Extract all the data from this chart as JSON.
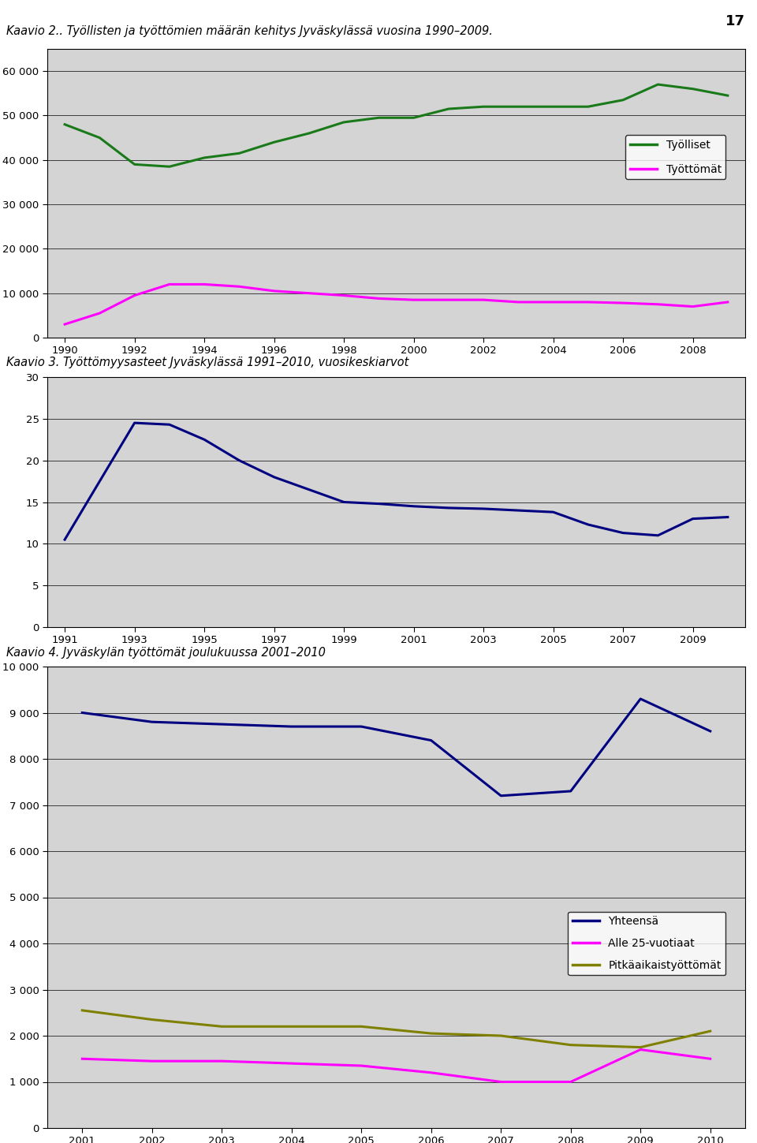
{
  "page_number": "17",
  "chart1": {
    "caption": "Kaavio 2.. Työllisten ja työttömien määrän kehitys Jyväskylässä vuosina 1990–2009.",
    "years": [
      1990,
      1991,
      1992,
      1993,
      1994,
      1995,
      1996,
      1997,
      1998,
      1999,
      2000,
      2001,
      2002,
      2003,
      2004,
      2005,
      2006,
      2007,
      2008,
      2009
    ],
    "tyolliset": [
      48000,
      45000,
      39000,
      38500,
      40500,
      41500,
      44000,
      46000,
      48500,
      49500,
      49500,
      51500,
      52000,
      52000,
      52000,
      52000,
      53500,
      57000,
      56000,
      54500
    ],
    "tyottomat": [
      3000,
      5500,
      9500,
      12000,
      12000,
      11500,
      10500,
      10000,
      9500,
      8800,
      8500,
      8500,
      8500,
      8000,
      8000,
      8000,
      7800,
      7500,
      7000,
      8000
    ],
    "tyolliset_color": "#1a7a1a",
    "tyottomat_color": "#FF00FF",
    "ylim": [
      0,
      65000
    ],
    "yticks": [
      0,
      10000,
      20000,
      30000,
      40000,
      50000,
      60000
    ],
    "ytick_labels": [
      "0",
      "10 000",
      "20 000",
      "30 000",
      "40 000",
      "50 000",
      "60 000"
    ],
    "xticks": [
      1990,
      1992,
      1994,
      1996,
      1998,
      2000,
      2002,
      2004,
      2006,
      2008
    ],
    "legend_labels": [
      "Työlliset",
      "Työttömät"
    ],
    "plot_bg": "#D4D4D4"
  },
  "chart2": {
    "caption": "Kaavio 3. Työttömyysasteet Jyväskylässä 1991–2010, vuosikeskiarvot",
    "years": [
      1991,
      1992,
      1993,
      1994,
      1995,
      1996,
      1997,
      1998,
      1999,
      2000,
      2001,
      2002,
      2003,
      2004,
      2005,
      2006,
      2007,
      2008,
      2009,
      2010
    ],
    "values": [
      10.5,
      17.5,
      24.5,
      24.3,
      22.5,
      20.0,
      18.0,
      16.5,
      15.0,
      14.8,
      14.5,
      14.3,
      14.2,
      14.0,
      13.8,
      12.3,
      11.3,
      11.0,
      13.0,
      13.2
    ],
    "line_color": "#000080",
    "ylim": [
      0,
      30
    ],
    "yticks": [
      0,
      5,
      10,
      15,
      20,
      25,
      30
    ],
    "xticks": [
      1991,
      1993,
      1995,
      1997,
      1999,
      2001,
      2003,
      2005,
      2007,
      2009
    ],
    "plot_bg": "#D4D4D4"
  },
  "chart3": {
    "caption": "Kaavio 4. Jyväskylän työttömät joulukuussa 2001–2010",
    "yhteensa_years": [
      2001,
      2002,
      2003,
      2004,
      2005,
      2006,
      2007,
      2008,
      2009,
      2010
    ],
    "yhteensa_vals": [
      9000,
      8800,
      8750,
      8700,
      8700,
      8400,
      7200,
      7300,
      9300,
      8600
    ],
    "alle25_vals": [
      1500,
      1450,
      1450,
      1400,
      1350,
      1200,
      1000,
      1000,
      1700,
      1500
    ],
    "pitkaaikais_vals": [
      2550,
      2350,
      2200,
      2200,
      2200,
      2050,
      2000,
      1800,
      1750,
      2100
    ],
    "yhteensa_color": "#000080",
    "alle25_color": "#FF00FF",
    "pitkaaikais_color": "#808000",
    "ylim": [
      0,
      10000
    ],
    "yticks": [
      0,
      1000,
      2000,
      3000,
      4000,
      5000,
      6000,
      7000,
      8000,
      9000,
      10000
    ],
    "ytick_labels": [
      "0",
      "1 000",
      "2 000",
      "3 000",
      "4 000",
      "5 000",
      "6 000",
      "7 000",
      "8 000",
      "9 000",
      "10 000"
    ],
    "xticks": [
      2001,
      2002,
      2003,
      2004,
      2005,
      2006,
      2007,
      2008,
      2009,
      2010
    ],
    "legend_labels": [
      "Yhteensä",
      "Alle 25-vuotiaat",
      "Pitkäaikaistyöttömät"
    ],
    "plot_bg": "#D4D4D4"
  },
  "bg_color": "#FFFFFF",
  "font_size_caption": 10.5,
  "font_size_tick": 9.5,
  "font_size_legend": 10,
  "line_width": 2.2
}
